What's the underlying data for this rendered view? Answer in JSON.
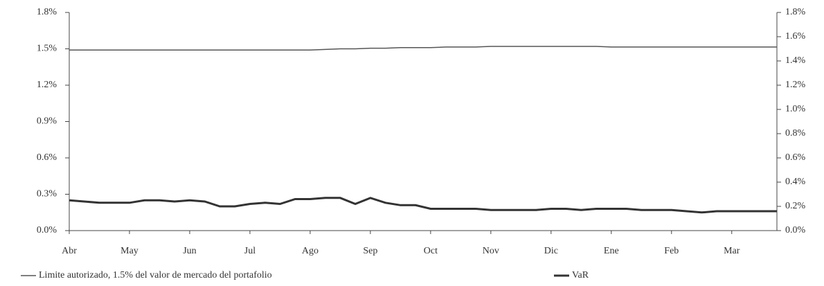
{
  "chart_data": {
    "type": "line",
    "categories": [
      "Abr",
      null,
      null,
      null,
      "May",
      null,
      null,
      null,
      "Jun",
      null,
      null,
      null,
      "Jul",
      null,
      null,
      null,
      "Ago",
      null,
      null,
      null,
      "Sep",
      null,
      null,
      null,
      "Oct",
      null,
      null,
      null,
      "Nov",
      null,
      null,
      null,
      "Dic",
      null,
      null,
      null,
      "Ene",
      null,
      null,
      null,
      "Feb",
      null,
      null,
      null,
      "Mar",
      null,
      null,
      null
    ],
    "series": [
      {
        "name": "Limite autorizado, 1.5% del valor de mercado del portafolio",
        "color": "#555555",
        "values": [
          1.49,
          1.49,
          1.49,
          1.49,
          1.49,
          1.49,
          1.49,
          1.49,
          1.49,
          1.49,
          1.49,
          1.49,
          1.49,
          1.49,
          1.49,
          1.49,
          1.49,
          1.495,
          1.5,
          1.5,
          1.505,
          1.505,
          1.51,
          1.51,
          1.51,
          1.515,
          1.515,
          1.515,
          1.52,
          1.52,
          1.52,
          1.52,
          1.52,
          1.52,
          1.52,
          1.52,
          1.515,
          1.515,
          1.515,
          1.515,
          1.515,
          1.515,
          1.515,
          1.515,
          1.515,
          1.515,
          1.515,
          1.515
        ]
      },
      {
        "name": "VaR",
        "color": "#333333",
        "values": [
          0.25,
          0.24,
          0.23,
          0.23,
          0.23,
          0.25,
          0.25,
          0.24,
          0.25,
          0.24,
          0.2,
          0.2,
          0.22,
          0.23,
          0.22,
          0.26,
          0.26,
          0.27,
          0.27,
          0.22,
          0.27,
          0.23,
          0.21,
          0.21,
          0.18,
          0.18,
          0.18,
          0.18,
          0.17,
          0.17,
          0.17,
          0.17,
          0.18,
          0.18,
          0.17,
          0.18,
          0.18,
          0.18,
          0.17,
          0.17,
          0.17,
          0.16,
          0.15,
          0.16,
          0.16,
          0.16,
          0.16,
          0.16
        ]
      }
    ],
    "ylim": [
      0,
      1.8
    ],
    "yticks": [
      {
        "value": 0,
        "label": "0.0%"
      },
      {
        "value": 0.3,
        "label": "0.3%"
      },
      {
        "value": 0.6,
        "label": "0.6%"
      },
      {
        "value": 0.9,
        "label": "0.9%"
      },
      {
        "value": 1.2,
        "label": "1.2%"
      },
      {
        "value": 1.5,
        "label": "1.5%"
      },
      {
        "value": 1.8,
        "label": "1.8%"
      }
    ],
    "y2lim": [
      0,
      1.8
    ],
    "y2ticks": [
      {
        "value": 0,
        "label": "0.0%"
      },
      {
        "value": 0.2,
        "label": "0.2%"
      },
      {
        "value": 0.4,
        "label": "0.4%"
      },
      {
        "value": 0.6,
        "label": "0.6%"
      },
      {
        "value": 0.8,
        "label": "0.8%"
      },
      {
        "value": 1.0,
        "label": "1.0%"
      },
      {
        "value": 1.2,
        "label": "1.2%"
      },
      {
        "value": 1.4,
        "label": "1.4%"
      },
      {
        "value": 1.6,
        "label": "1.6%"
      },
      {
        "value": 1.8,
        "label": "1.8%"
      }
    ]
  }
}
